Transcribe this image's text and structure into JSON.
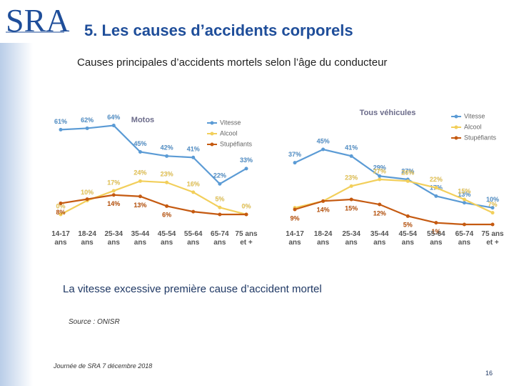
{
  "header": {
    "logo": "SRA",
    "title": "5. Les causes d’accidents corporels",
    "subtitle": "Causes principales d’accidents mortels selon l’âge du conducteur"
  },
  "chart_data": [
    {
      "type": "line",
      "title": "Motos",
      "categories": [
        "14-17 ans",
        "18-24 ans",
        "25-34 ans",
        "35-44 ans",
        "45-54 ans",
        "55-64 ans",
        "65-74 ans",
        "75 ans et +"
      ],
      "series": [
        {
          "name": "Vitesse",
          "color": "#5b9bd5",
          "values": [
            61,
            62,
            64,
            45,
            42,
            41,
            22,
            33
          ],
          "value_labels": [
            "61%",
            "62%",
            "64%",
            "45%",
            "42%",
            "41%",
            "22%",
            "33%"
          ]
        },
        {
          "name": "Alcool",
          "color": "#f2cf5b",
          "values": [
            0,
            10,
            17,
            24,
            23,
            16,
            5,
            0
          ],
          "value_labels": [
            "0%",
            "10%",
            "17%",
            "24%",
            "23%",
            "16%",
            "5%",
            "0%"
          ]
        },
        {
          "name": "Stupéfiants",
          "color": "#c55a11",
          "values": [
            8,
            11,
            14,
            13,
            6,
            2,
            0,
            0
          ],
          "value_labels": [
            "8%",
            null,
            "14%",
            "13%",
            "6%",
            null,
            null,
            null
          ]
        }
      ],
      "ylim": [
        0,
        72
      ],
      "legend": "top-right"
    },
    {
      "type": "line",
      "title": "Tous véhicules",
      "categories": [
        "14-17 ans",
        "18-24 ans",
        "25-34 ans",
        "35-44 ans",
        "45-54 ans",
        "55-64 ans",
        "65-74 ans",
        "75 ans et +"
      ],
      "series": [
        {
          "name": "Vitesse",
          "color": "#5b9bd5",
          "values": [
            37,
            45,
            41,
            29,
            27,
            17,
            13,
            10
          ],
          "value_labels": [
            "37%",
            "45%",
            "41%",
            "29%",
            "27%",
            "17%",
            "13%",
            "10%"
          ]
        },
        {
          "name": "Alcool",
          "color": "#f2cf5b",
          "values": [
            10,
            14,
            23,
            27,
            26,
            22,
            15,
            7
          ],
          "value_labels": [
            null,
            null,
            "23%",
            "27%",
            "26%",
            "22%",
            "15%",
            "7%"
          ]
        },
        {
          "name": "Stupéfiants",
          "color": "#c55a11",
          "values": [
            9,
            14,
            15,
            12,
            5,
            1,
            0,
            0
          ],
          "value_labels": [
            "9%",
            "14%",
            "15%",
            "12%",
            "5%",
            "1%",
            null,
            null
          ]
        }
      ],
      "ylim": [
        0,
        60
      ],
      "legend": "top-right"
    }
  ],
  "tagline": "La vitesse excessive première cause d’accident mortel",
  "source": "Source : ONISR",
  "footer": {
    "event": "Journée de SRA 7 décembre 2018",
    "page": "16"
  }
}
